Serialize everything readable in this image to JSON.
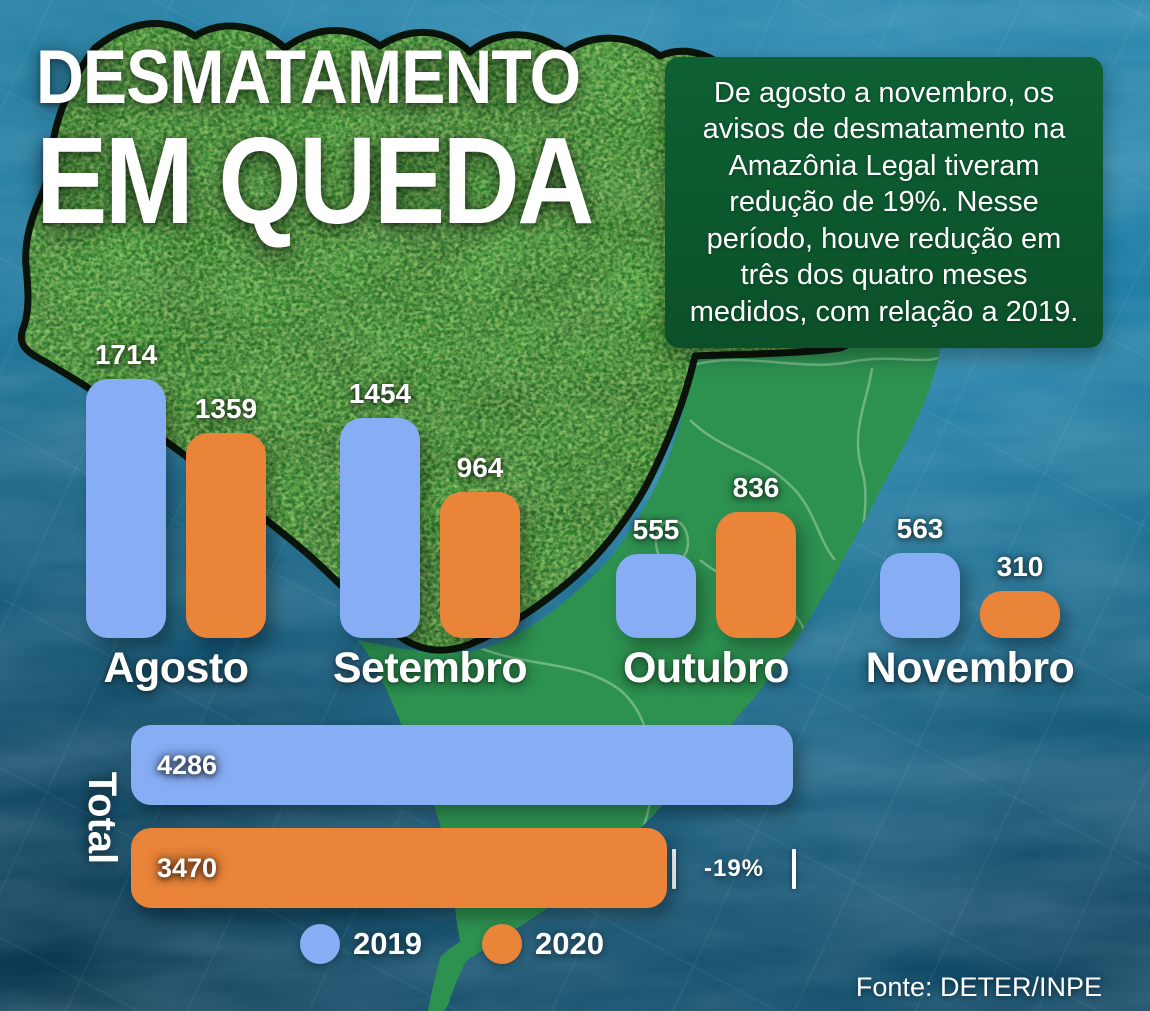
{
  "title": {
    "line1": "DESMATAMENTO",
    "line2": "EM QUEDA"
  },
  "info_box": {
    "text": "De agosto a novembro, os avisos de desmatamento na Amazônia Legal tiveram redução de 19%. Nesse período, houve redução em três dos quatro meses medidos, com relação a 2019."
  },
  "chart_data": {
    "type": "bar",
    "title": "Desmatamento em queda",
    "categories": [
      "Agosto",
      "Setembro",
      "Outubro",
      "Novembro"
    ],
    "series": [
      {
        "name": "2019",
        "color": "#87aef5",
        "values": [
          1714,
          1454,
          555,
          563
        ]
      },
      {
        "name": "2020",
        "color": "#ea8439",
        "values": [
          1359,
          964,
          836,
          310
        ]
      }
    ],
    "totals": {
      "label": "Total",
      "series": [
        {
          "name": "2019",
          "value": 4286
        },
        {
          "name": "2020",
          "value": 3470
        }
      ],
      "change_label": "-19%"
    },
    "grid": false,
    "legend_position": "bottom",
    "value_labels": true
  },
  "source": {
    "text": "Fonte: DETER/INPE"
  },
  "colors": {
    "background_blue": "#176d92",
    "map_green": "#2d9150",
    "state_border_green": "#a5d4ab",
    "forest_dark_green": "#1d3f12",
    "forest_outline": "#0a140a",
    "info_box_green": "#0c5a2f",
    "text": "#ffffff"
  }
}
